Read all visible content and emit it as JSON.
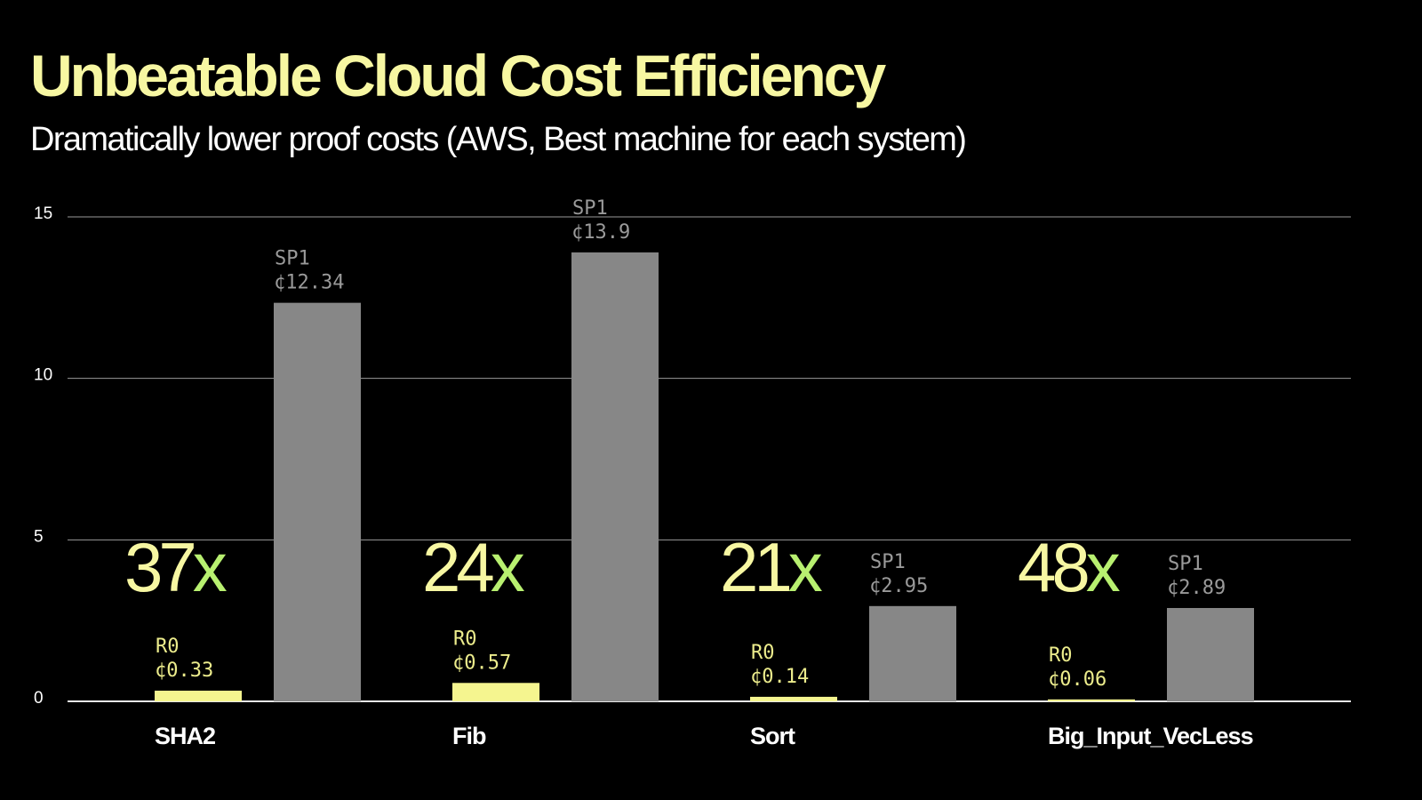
{
  "header": {
    "title": "Unbeatable Cloud Cost Efficiency",
    "subtitle": "Dramatically lower proof costs (AWS, Best machine for each system)"
  },
  "colors": {
    "background": "#000000",
    "title": "#f7f7a2",
    "r0_bar": "#f5f58f",
    "r0_label": "#ecec8c",
    "sp1_bar": "#878787",
    "sp1_label": "#9a9a9a",
    "ratio_digits": "#f7f7a2",
    "ratio_x": "#b8f070",
    "text": "#ffffff",
    "grid": "#9a9a9a"
  },
  "chart_data": {
    "type": "bar",
    "title": "Unbeatable Cloud Cost Efficiency",
    "subtitle": "Dramatically lower proof costs (AWS, Best machine for each system)",
    "xlabel": "",
    "ylabel": "",
    "ylim": [
      0,
      15
    ],
    "yticks": [
      {
        "value": 0,
        "label": "0"
      },
      {
        "value": 5,
        "label": "5"
      },
      {
        "value": 10,
        "label": "10"
      },
      {
        "value": 15,
        "label": "15"
      }
    ],
    "grid": true,
    "legend": "none",
    "categories": [
      "SHA2",
      "Fib",
      "Sort",
      "Big_Input_VecLess"
    ],
    "series": [
      {
        "name": "R0",
        "values": [
          0.33,
          0.57,
          0.14,
          0.06
        ],
        "labels": [
          "¢0.33",
          "¢0.57",
          "¢0.14",
          "¢0.06"
        ]
      },
      {
        "name": "SP1",
        "values": [
          12.34,
          13.9,
          2.95,
          2.89
        ],
        "labels": [
          "¢12.34",
          "¢13.9",
          "¢2.95",
          "¢2.89"
        ]
      }
    ],
    "ratios": [
      {
        "number": "37",
        "suffix": "x"
      },
      {
        "number": "24",
        "suffix": "x"
      },
      {
        "number": "21",
        "suffix": "x"
      },
      {
        "number": "48",
        "suffix": "x"
      }
    ]
  }
}
